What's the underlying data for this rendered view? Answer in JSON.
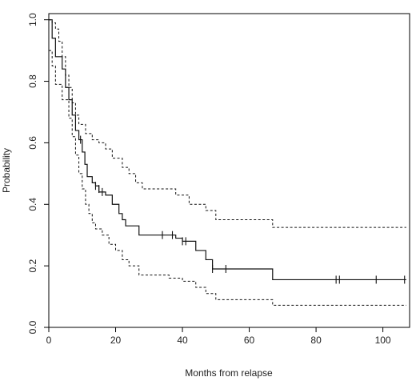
{
  "chart_data": {
    "type": "line",
    "title": "",
    "xlabel": "Months from relapse",
    "ylabel": "Probability",
    "xlim": [
      0,
      108
    ],
    "ylim": [
      0,
      1.02
    ],
    "x_ticks": [
      0,
      20,
      40,
      60,
      80,
      100
    ],
    "y_ticks": [
      0.0,
      0.2,
      0.4,
      0.6,
      0.8,
      1.0
    ],
    "x_tick_labels": [
      "0",
      "20",
      "40",
      "60",
      "80",
      "100"
    ],
    "y_tick_labels": [
      "0.0",
      "0.2",
      "0.4",
      "0.6",
      "0.8",
      "1.0"
    ],
    "grid": false,
    "legend": "none",
    "series": [
      {
        "style": "solid",
        "steps": [
          [
            0,
            1.0
          ],
          [
            1,
            0.94
          ],
          [
            2,
            0.88
          ],
          [
            4,
            0.84
          ],
          [
            5,
            0.78
          ],
          [
            6,
            0.74
          ],
          [
            7,
            0.69
          ],
          [
            8,
            0.64
          ],
          [
            9,
            0.61
          ],
          [
            10,
            0.57
          ],
          [
            10.8,
            0.53
          ],
          [
            11.5,
            0.49
          ],
          [
            13,
            0.47
          ],
          [
            14,
            0.46
          ],
          [
            15,
            0.44
          ],
          [
            17,
            0.43
          ],
          [
            19,
            0.4
          ],
          [
            21,
            0.37
          ],
          [
            22,
            0.35
          ],
          [
            23,
            0.33
          ],
          [
            27,
            0.3
          ],
          [
            38,
            0.29
          ],
          [
            40,
            0.28
          ],
          [
            44,
            0.25
          ],
          [
            47,
            0.22
          ],
          [
            49,
            0.19
          ],
          [
            67,
            0.155
          ],
          [
            107,
            0.155
          ]
        ],
        "censor_marks": [
          [
            9.5,
            0.61
          ],
          [
            14,
            0.46
          ],
          [
            15,
            0.45
          ],
          [
            16,
            0.44
          ],
          [
            34,
            0.3
          ],
          [
            37,
            0.3
          ],
          [
            40,
            0.28
          ],
          [
            41,
            0.28
          ],
          [
            49,
            0.19
          ],
          [
            53,
            0.19
          ],
          [
            86,
            0.155
          ],
          [
            87,
            0.155
          ],
          [
            98,
            0.155
          ],
          [
            106.5,
            0.155
          ]
        ]
      },
      {
        "style": "dashed",
        "steps": [
          [
            0,
            1.0
          ],
          [
            1,
            0.99
          ],
          [
            2,
            0.97
          ],
          [
            3,
            0.93
          ],
          [
            4,
            0.88
          ],
          [
            5,
            0.82
          ],
          [
            6,
            0.78
          ],
          [
            7,
            0.73
          ],
          [
            8,
            0.69
          ],
          [
            9,
            0.66
          ],
          [
            11,
            0.63
          ],
          [
            13,
            0.61
          ],
          [
            15,
            0.6
          ],
          [
            17,
            0.58
          ],
          [
            19,
            0.55
          ],
          [
            22,
            0.52
          ],
          [
            24,
            0.5
          ],
          [
            26,
            0.47
          ],
          [
            28,
            0.45
          ],
          [
            38,
            0.43
          ],
          [
            42,
            0.4
          ],
          [
            47,
            0.38
          ],
          [
            50,
            0.35
          ],
          [
            67,
            0.325
          ],
          [
            107,
            0.325
          ]
        ]
      },
      {
        "style": "dashed",
        "steps": [
          [
            0,
            0.9
          ],
          [
            1,
            0.85
          ],
          [
            2,
            0.79
          ],
          [
            4,
            0.74
          ],
          [
            6,
            0.68
          ],
          [
            7,
            0.62
          ],
          [
            8,
            0.56
          ],
          [
            9,
            0.5
          ],
          [
            10,
            0.45
          ],
          [
            11,
            0.4
          ],
          [
            12,
            0.37
          ],
          [
            13,
            0.34
          ],
          [
            14,
            0.32
          ],
          [
            16,
            0.3
          ],
          [
            18,
            0.27
          ],
          [
            20,
            0.25
          ],
          [
            22,
            0.22
          ],
          [
            24,
            0.2
          ],
          [
            27,
            0.17
          ],
          [
            36,
            0.16
          ],
          [
            40,
            0.15
          ],
          [
            44,
            0.13
          ],
          [
            47,
            0.11
          ],
          [
            50,
            0.09
          ],
          [
            67,
            0.072
          ],
          [
            107,
            0.072
          ]
        ]
      }
    ]
  }
}
